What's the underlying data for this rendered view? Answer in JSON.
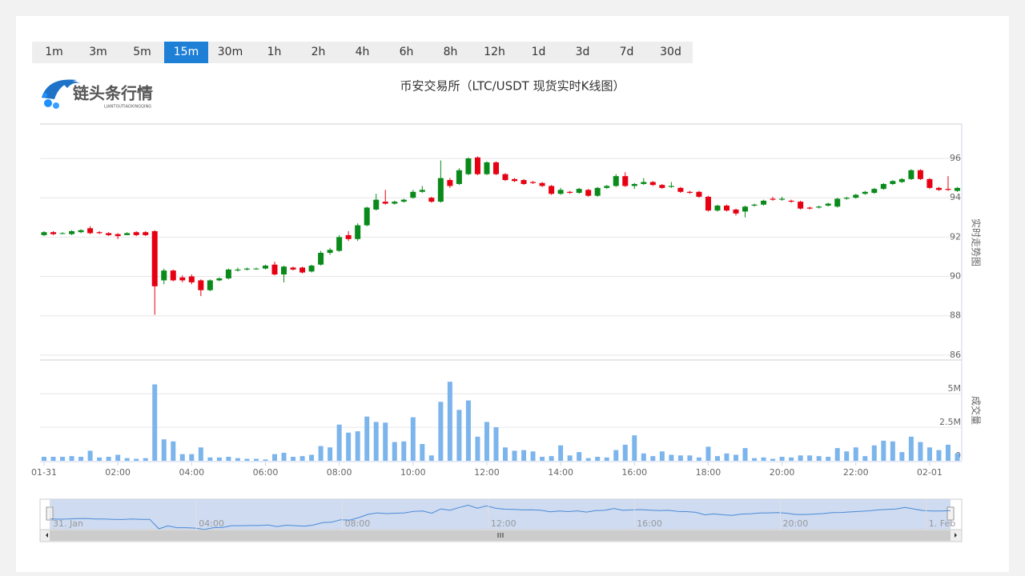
{
  "intervals": [
    "1m",
    "3m",
    "5m",
    "15m",
    "30m",
    "1h",
    "2h",
    "4h",
    "6h",
    "8h",
    "12h",
    "1d",
    "3d",
    "7d",
    "30d"
  ],
  "active_interval": "15m",
  "logo": {
    "text": "链头条行情",
    "subtext": "LIANTOUTIAOXINGQING"
  },
  "chart_data": {
    "type": "candlestick",
    "title": "币安交易所（LTC/USDT 现货实时K线图）",
    "y_axis_label": "实时走势图",
    "up_color": "#0a8a1a",
    "down_color": "#e60012",
    "ylim": [
      85.75,
      97.75
    ],
    "yticks": [
      86,
      88,
      90,
      92,
      94,
      96
    ],
    "grid": true,
    "categories": [
      "01-31",
      null,
      null,
      null,
      null,
      null,
      null,
      null,
      "02:00",
      null,
      null,
      null,
      null,
      null,
      null,
      null,
      "04:00",
      null,
      null,
      null,
      null,
      null,
      null,
      null,
      "06:00",
      null,
      null,
      null,
      null,
      null,
      null,
      null,
      "08:00",
      null,
      null,
      null,
      null,
      null,
      null,
      null,
      "10:00",
      null,
      null,
      null,
      null,
      null,
      null,
      null,
      "12:00",
      null,
      null,
      null,
      null,
      null,
      null,
      null,
      "14:00",
      null,
      null,
      null,
      null,
      null,
      null,
      null,
      "16:00",
      null,
      null,
      null,
      null,
      null,
      null,
      null,
      "18:00",
      null,
      null,
      null,
      null,
      null,
      null,
      null,
      "20:00",
      null,
      null,
      null,
      null,
      null,
      null,
      null,
      "22:00",
      null,
      null,
      null,
      null,
      null,
      null,
      null,
      "02-01",
      null,
      null,
      null
    ],
    "open": [
      92.1,
      92.25,
      92.2,
      92.15,
      92.25,
      92.45,
      92.25,
      92.2,
      92.15,
      92.1,
      92.25,
      92.25,
      92.3,
      89.8,
      90.3,
      89.95,
      90.0,
      89.8,
      89.3,
      89.8,
      89.9,
      90.3,
      90.35,
      90.4,
      90.4,
      90.6,
      90.1,
      90.45,
      90.45,
      90.25,
      90.6,
      91.2,
      91.3,
      92.1,
      91.9,
      92.6,
      93.4,
      93.8,
      93.7,
      93.8,
      94.0,
      94.3,
      94.0,
      93.8,
      94.9,
      94.7,
      95.2,
      96.05,
      95.2,
      95.8,
      95.2,
      94.95,
      94.9,
      94.8,
      94.75,
      94.6,
      94.2,
      94.3,
      94.25,
      94.4,
      94.1,
      94.5,
      94.6,
      95.1,
      94.6,
      94.7,
      94.8,
      94.65,
      94.55,
      94.5,
      94.3,
      94.3,
      94.05,
      93.35,
      93.6,
      93.4,
      93.3,
      93.6,
      93.65,
      93.95,
      93.9,
      93.85,
      93.8,
      93.5,
      93.5,
      93.6,
      93.55,
      93.95,
      94.0,
      94.2,
      94.25,
      94.45,
      94.7,
      94.8,
      94.95,
      95.4,
      94.95,
      94.5,
      94.45,
      94.35
    ],
    "close": [
      92.25,
      92.15,
      92.2,
      92.3,
      92.35,
      92.2,
      92.2,
      92.1,
      92.05,
      92.2,
      92.1,
      92.1,
      89.5,
      90.3,
      89.8,
      89.8,
      89.7,
      89.3,
      89.8,
      89.9,
      90.35,
      90.35,
      90.4,
      90.4,
      90.55,
      90.1,
      90.5,
      90.35,
      90.2,
      90.55,
      91.2,
      91.35,
      92.0,
      91.9,
      92.6,
      93.5,
      93.9,
      93.7,
      93.8,
      93.9,
      94.3,
      94.4,
      93.8,
      95.0,
      94.6,
      95.4,
      96.0,
      95.2,
      95.8,
      95.2,
      94.9,
      94.85,
      94.7,
      94.75,
      94.6,
      94.2,
      94.4,
      94.25,
      94.45,
      94.1,
      94.5,
      94.6,
      95.1,
      94.6,
      94.7,
      94.8,
      94.65,
      94.5,
      94.6,
      94.3,
      94.25,
      94.05,
      93.35,
      93.6,
      93.35,
      93.2,
      93.55,
      93.65,
      93.85,
      93.9,
      93.95,
      93.8,
      93.45,
      93.45,
      93.55,
      93.7,
      93.95,
      94.0,
      94.15,
      94.3,
      94.45,
      94.7,
      94.85,
      94.95,
      95.4,
      94.95,
      94.5,
      94.4,
      94.4,
      94.5
    ],
    "high": [
      92.3,
      92.3,
      92.25,
      92.35,
      92.4,
      92.55,
      92.3,
      92.25,
      92.2,
      92.25,
      92.3,
      92.3,
      92.35,
      90.4,
      90.35,
      90.05,
      90.1,
      89.85,
      89.85,
      89.95,
      90.4,
      90.45,
      90.45,
      90.45,
      90.6,
      90.75,
      90.55,
      90.5,
      90.5,
      90.6,
      91.3,
      91.45,
      92.1,
      92.3,
      92.7,
      93.55,
      94.2,
      94.4,
      93.85,
      93.95,
      94.4,
      94.6,
      94.05,
      95.9,
      95.0,
      95.5,
      96.05,
      96.1,
      95.85,
      95.85,
      95.25,
      95.0,
      94.95,
      94.85,
      94.8,
      94.65,
      94.5,
      94.35,
      94.5,
      94.45,
      94.55,
      94.65,
      95.2,
      95.3,
      94.75,
      95.0,
      94.85,
      94.7,
      94.8,
      94.55,
      94.35,
      94.35,
      94.1,
      93.65,
      93.65,
      93.45,
      93.6,
      93.7,
      93.9,
      94.05,
      94.05,
      93.9,
      93.85,
      93.55,
      93.6,
      93.75,
      94.0,
      94.05,
      94.2,
      94.35,
      94.5,
      94.75,
      94.9,
      95.0,
      95.45,
      95.45,
      95.0,
      94.55,
      95.1,
      94.55
    ],
    "low": [
      92.05,
      92.1,
      92.15,
      92.1,
      92.2,
      92.15,
      92.15,
      92.05,
      91.9,
      92.15,
      92.05,
      92.05,
      88.05,
      89.6,
      89.75,
      89.7,
      89.6,
      89.0,
      89.25,
      89.75,
      89.85,
      90.25,
      90.3,
      90.35,
      90.35,
      90.05,
      89.7,
      90.3,
      90.15,
      90.2,
      90.55,
      91.1,
      91.25,
      91.8,
      91.8,
      92.55,
      93.35,
      93.65,
      93.65,
      93.75,
      93.95,
      94.25,
      93.75,
      93.75,
      94.5,
      94.65,
      95.15,
      95.15,
      95.15,
      95.15,
      94.85,
      94.8,
      94.65,
      94.7,
      94.55,
      94.15,
      94.15,
      94.2,
      94.2,
      94.05,
      94.05,
      94.45,
      94.55,
      94.55,
      94.45,
      94.65,
      94.6,
      94.45,
      94.5,
      94.25,
      94.2,
      94.0,
      93.3,
      93.3,
      93.3,
      93.1,
      93.0,
      93.55,
      93.6,
      93.85,
      93.85,
      93.75,
      93.4,
      93.4,
      93.45,
      93.55,
      93.5,
      93.9,
      93.95,
      94.15,
      94.2,
      94.4,
      94.65,
      94.75,
      94.9,
      94.9,
      94.45,
      94.35,
      94.35,
      94.3
    ],
    "volume": {
      "name": "成交量",
      "color": "#7cb5ec",
      "ylim": [
        0,
        7400000
      ],
      "yticks": [
        0,
        {
          "value": 2500000,
          "label": "2.5M"
        },
        {
          "value": 5000000,
          "label": "5M"
        }
      ],
      "values": [
        300000,
        300000,
        300000,
        350000,
        300000,
        750000,
        250000,
        300000,
        450000,
        200000,
        150000,
        200000,
        5700000,
        1600000,
        1450000,
        500000,
        500000,
        1000000,
        250000,
        250000,
        300000,
        200000,
        150000,
        150000,
        100000,
        500000,
        600000,
        300000,
        350000,
        450000,
        1100000,
        1000000,
        2700000,
        2100000,
        2200000,
        3300000,
        2900000,
        2850000,
        1400000,
        1450000,
        3250000,
        1250000,
        400000,
        4400000,
        5900000,
        3800000,
        4500000,
        1800000,
        2900000,
        2500000,
        1000000,
        750000,
        800000,
        700000,
        300000,
        350000,
        1150000,
        400000,
        650000,
        200000,
        300000,
        250000,
        800000,
        1200000,
        1900000,
        550000,
        350000,
        700000,
        450000,
        400000,
        400000,
        250000,
        1050000,
        350000,
        550000,
        450000,
        950000,
        200000,
        250000,
        150000,
        300000,
        250000,
        400000,
        400000,
        350000,
        300000,
        950000,
        700000,
        1000000,
        350000,
        1150000,
        1500000,
        1450000,
        650000,
        1800000,
        1400000,
        1000000,
        800000,
        1200000,
        550000
      ]
    },
    "navigator": {
      "labels": [
        "31. Jan",
        "04:00",
        "08:00",
        "12:00",
        "16:00",
        "20:00",
        "1. Feb"
      ]
    }
  }
}
